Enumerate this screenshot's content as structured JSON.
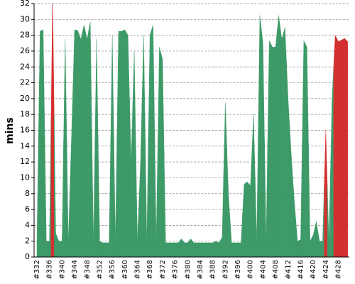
{
  "chart_data": {
    "type": "area",
    "y_label": "mins",
    "categories": [
      "#332",
      null,
      null,
      null,
      "#336",
      null,
      null,
      null,
      "#340",
      null,
      null,
      null,
      "#344",
      null,
      null,
      null,
      "#348",
      null,
      null,
      null,
      "#352",
      null,
      null,
      null,
      "#356",
      null,
      null,
      null,
      "#360",
      null,
      null,
      null,
      "#364",
      null,
      null,
      null,
      "#368",
      null,
      null,
      null,
      "#372",
      null,
      null,
      null,
      "#376",
      null,
      null,
      null,
      "#380",
      null,
      null,
      null,
      "#384",
      null,
      null,
      null,
      "#388",
      null,
      null,
      null,
      "#392",
      null,
      null,
      null,
      "#396",
      null,
      null,
      null,
      "#400",
      null,
      null,
      null,
      "#404",
      null,
      null,
      null,
      "#408",
      null,
      null,
      null,
      "#412",
      null,
      null,
      null,
      "#416",
      null,
      null,
      null,
      "#420",
      null,
      null,
      null,
      "#424",
      null,
      null,
      null,
      "#428",
      null,
      null,
      null
    ],
    "values": [
      2,
      28.5,
      28.7,
      2,
      2,
      33,
      3,
      2,
      2,
      27.5,
      2,
      15,
      28.7,
      28.6,
      27.5,
      29.3,
      27.5,
      29.7,
      2,
      27.5,
      2,
      1.8,
      1.8,
      1.8,
      28,
      2,
      28.5,
      28.5,
      28.7,
      28,
      12,
      26,
      2,
      12,
      28,
      2,
      28,
      29.3,
      2,
      26.5,
      25,
      1.8,
      1.8,
      1.8,
      1.8,
      1.8,
      2.3,
      1.8,
      1.8,
      2.3,
      1.8,
      1.8,
      1.8,
      1.8,
      1.8,
      1.8,
      1.8,
      2,
      1.8,
      2.5,
      19.5,
      8,
      1.8,
      1.8,
      1.8,
      1.8,
      9.2,
      9.5,
      9,
      18,
      2,
      30.5,
      27,
      2,
      27.3,
      26.5,
      26.5,
      30.5,
      27.5,
      29,
      20,
      13,
      7,
      2,
      2.2,
      27.3,
      26.5,
      2,
      2.8,
      4.5,
      2,
      2,
      16,
      2,
      20,
      28,
      27.2,
      27.4,
      27.6,
      27.2
    ],
    "point_colors": [
      "#3d9a68",
      "#3d9a68",
      "#3d9a68",
      "#3d9a68",
      "#3d9a68",
      "#d33030",
      "#3d9a68",
      "#3d9a68",
      "#3d9a68",
      "#3d9a68",
      "#3d9a68",
      "#3d9a68",
      "#3d9a68",
      "#3d9a68",
      "#3d9a68",
      "#3d9a68",
      "#3d9a68",
      "#3d9a68",
      "#3d9a68",
      "#3d9a68",
      "#3d9a68",
      "#3d9a68",
      "#3d9a68",
      "#3d9a68",
      "#3d9a68",
      "#3d9a68",
      "#3d9a68",
      "#3d9a68",
      "#3d9a68",
      "#3d9a68",
      "#3d9a68",
      "#3d9a68",
      "#3d9a68",
      "#3d9a68",
      "#3d9a68",
      "#3d9a68",
      "#3d9a68",
      "#3d9a68",
      "#3d9a68",
      "#3d9a68",
      "#3d9a68",
      "#3d9a68",
      "#3d9a68",
      "#3d9a68",
      "#3d9a68",
      "#3d9a68",
      "#3d9a68",
      "#3d9a68",
      "#3d9a68",
      "#3d9a68",
      "#3d9a68",
      "#3d9a68",
      "#3d9a68",
      "#3d9a68",
      "#3d9a68",
      "#3d9a68",
      "#3d9a68",
      "#3d9a68",
      "#3d9a68",
      "#3d9a68",
      "#3d9a68",
      "#3d9a68",
      "#3d9a68",
      "#3d9a68",
      "#3d9a68",
      "#3d9a68",
      "#3d9a68",
      "#3d9a68",
      "#3d9a68",
      "#3d9a68",
      "#3d9a68",
      "#3d9a68",
      "#3d9a68",
      "#3d9a68",
      "#3d9a68",
      "#3d9a68",
      "#3d9a68",
      "#3d9a68",
      "#3d9a68",
      "#3d9a68",
      "#3d9a68",
      "#3d9a68",
      "#3d9a68",
      "#3d9a68",
      "#3d9a68",
      "#3d9a68",
      "#3d9a68",
      "#3d9a68",
      "#3d9a68",
      "#3d9a68",
      "#3d9a68",
      "#3d9a68",
      "#d33030",
      "#3d9a68",
      "#3d9a68",
      "#d33030",
      "#d33030",
      "#d33030",
      "#d33030",
      "#d33030"
    ],
    "ylim": [
      0,
      32
    ],
    "yticks": [
      0,
      2,
      4,
      6,
      8,
      10,
      12,
      14,
      16,
      18,
      20,
      22,
      24,
      26,
      28,
      30,
      32
    ],
    "grid": true
  }
}
